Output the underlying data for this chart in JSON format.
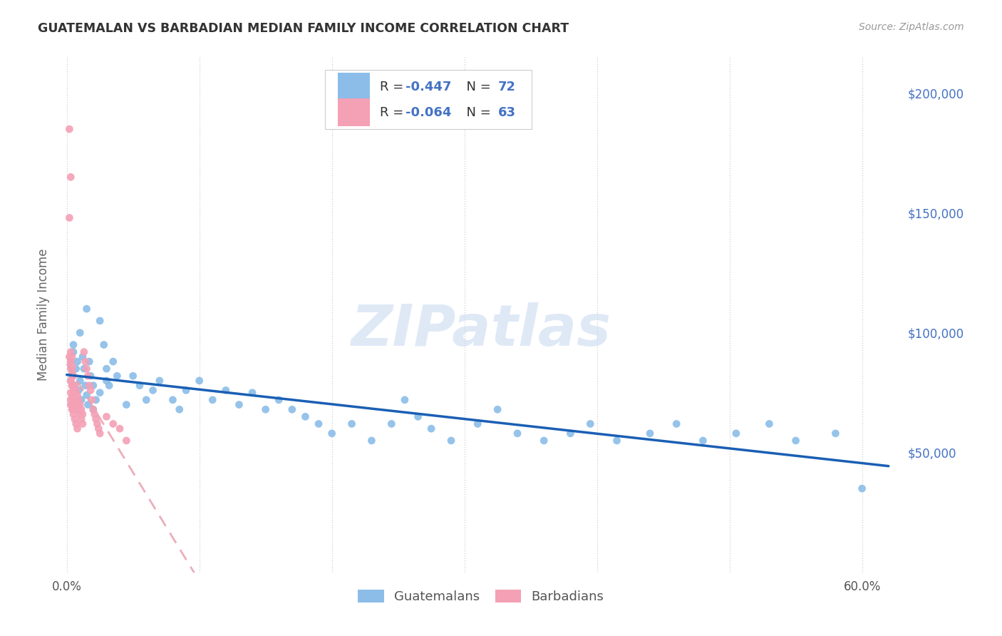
{
  "title": "GUATEMALAN VS BARBADIAN MEDIAN FAMILY INCOME CORRELATION CHART",
  "source": "Source: ZipAtlas.com",
  "ylabel": "Median Family Income",
  "guatemalan_color": "#8bbde8",
  "barbadian_color": "#f4a0b5",
  "guatemalan_line_color": "#1a5fb4",
  "barbadian_line_color": "#e8a0b0",
  "watermark": "ZIPatlas",
  "ylim_min": 0,
  "ylim_max": 215000,
  "xlim_min": -0.005,
  "xlim_max": 0.63,
  "guatemalan_x": [
    0.003,
    0.004,
    0.005,
    0.006,
    0.007,
    0.008,
    0.009,
    0.01,
    0.011,
    0.012,
    0.013,
    0.014,
    0.015,
    0.016,
    0.017,
    0.018,
    0.02,
    0.022,
    0.025,
    0.028,
    0.03,
    0.032,
    0.035,
    0.038,
    0.045,
    0.05,
    0.055,
    0.06,
    0.065,
    0.07,
    0.08,
    0.085,
    0.09,
    0.1,
    0.11,
    0.12,
    0.13,
    0.14,
    0.15,
    0.16,
    0.17,
    0.18,
    0.19,
    0.2,
    0.215,
    0.23,
    0.245,
    0.255,
    0.265,
    0.275,
    0.29,
    0.31,
    0.325,
    0.34,
    0.36,
    0.38,
    0.395,
    0.415,
    0.44,
    0.46,
    0.48,
    0.505,
    0.53,
    0.55,
    0.58,
    0.6,
    0.005,
    0.01,
    0.015,
    0.02,
    0.025,
    0.03
  ],
  "guatemalan_y": [
    88000,
    82000,
    92000,
    78000,
    85000,
    88000,
    76000,
    80000,
    72000,
    90000,
    85000,
    78000,
    74000,
    70000,
    88000,
    82000,
    78000,
    72000,
    105000,
    95000,
    85000,
    78000,
    88000,
    82000,
    70000,
    82000,
    78000,
    72000,
    76000,
    80000,
    72000,
    68000,
    76000,
    80000,
    72000,
    76000,
    70000,
    75000,
    68000,
    72000,
    68000,
    65000,
    62000,
    58000,
    62000,
    55000,
    62000,
    72000,
    65000,
    60000,
    55000,
    62000,
    68000,
    58000,
    55000,
    58000,
    62000,
    55000,
    58000,
    62000,
    55000,
    58000,
    62000,
    55000,
    58000,
    35000,
    95000,
    100000,
    110000,
    68000,
    75000,
    80000
  ],
  "barbadian_x": [
    0.002,
    0.003,
    0.004,
    0.005,
    0.006,
    0.007,
    0.008,
    0.009,
    0.01,
    0.011,
    0.012,
    0.013,
    0.014,
    0.015,
    0.016,
    0.017,
    0.018,
    0.019,
    0.02,
    0.021,
    0.022,
    0.023,
    0.024,
    0.025,
    0.03,
    0.035,
    0.04,
    0.045,
    0.003,
    0.004,
    0.005,
    0.006,
    0.007,
    0.008,
    0.009,
    0.01,
    0.011,
    0.012,
    0.003,
    0.004,
    0.005,
    0.006,
    0.007,
    0.008,
    0.003,
    0.004,
    0.005,
    0.006,
    0.003,
    0.004,
    0.005,
    0.003,
    0.004,
    0.005,
    0.003,
    0.004,
    0.003,
    0.004,
    0.003,
    0.004,
    0.002,
    0.003,
    0.002
  ],
  "barbadian_y": [
    90000,
    88000,
    85000,
    82000,
    78000,
    76000,
    74000,
    72000,
    70000,
    68000,
    66000,
    92000,
    88000,
    85000,
    82000,
    78000,
    76000,
    72000,
    68000,
    66000,
    64000,
    62000,
    60000,
    58000,
    65000,
    62000,
    60000,
    55000,
    80000,
    78000,
    76000,
    74000,
    72000,
    70000,
    68000,
    66000,
    64000,
    62000,
    70000,
    68000,
    66000,
    64000,
    62000,
    60000,
    75000,
    73000,
    70000,
    68000,
    72000,
    70000,
    68000,
    80000,
    78000,
    75000,
    85000,
    83000,
    88000,
    86000,
    92000,
    90000,
    185000,
    165000,
    148000
  ]
}
